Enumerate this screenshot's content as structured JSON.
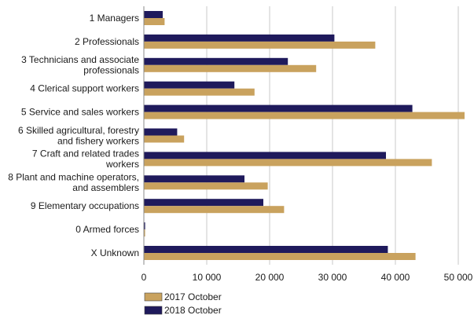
{
  "chart_data": {
    "type": "bar",
    "orientation": "horizontal",
    "categories": [
      [
        "1 Managers"
      ],
      [
        "2 Professionals"
      ],
      [
        "3 Technicians and associate",
        "professionals"
      ],
      [
        "4 Clerical support workers"
      ],
      [
        "5 Service and sales workers"
      ],
      [
        "6 Skilled agricultural, forestry",
        "and fishery workers"
      ],
      [
        "7 Craft and related trades",
        "workers"
      ],
      [
        "8 Plant and machine operators,",
        "and assemblers"
      ],
      [
        "9 Elementary occupations"
      ],
      [
        "0 Armed forces"
      ],
      [
        "X Unknown"
      ]
    ],
    "series": [
      {
        "name": "2018 October",
        "color": "#1f1a5c",
        "values": [
          3000,
          30300,
          22900,
          14400,
          42700,
          5300,
          38500,
          16000,
          19000,
          200,
          38800
        ]
      },
      {
        "name": "2017 October",
        "color": "#c9a25e",
        "values": [
          3300,
          36800,
          27400,
          17600,
          51000,
          6400,
          45800,
          19700,
          22300,
          200,
          43200
        ]
      }
    ],
    "xlim": [
      0,
      52000
    ],
    "xticks": [
      "0",
      "10 000",
      "20 000",
      "30 000",
      "40 000",
      "50 000"
    ],
    "xtick_values": [
      0,
      10000,
      20000,
      30000,
      40000,
      50000
    ],
    "grid": "vertical",
    "legend": [
      {
        "label": "2017 October",
        "color": "#c9a25e"
      },
      {
        "label": "2018 October",
        "color": "#1f1a5c"
      }
    ],
    "legend_position": "bottom-left"
  }
}
